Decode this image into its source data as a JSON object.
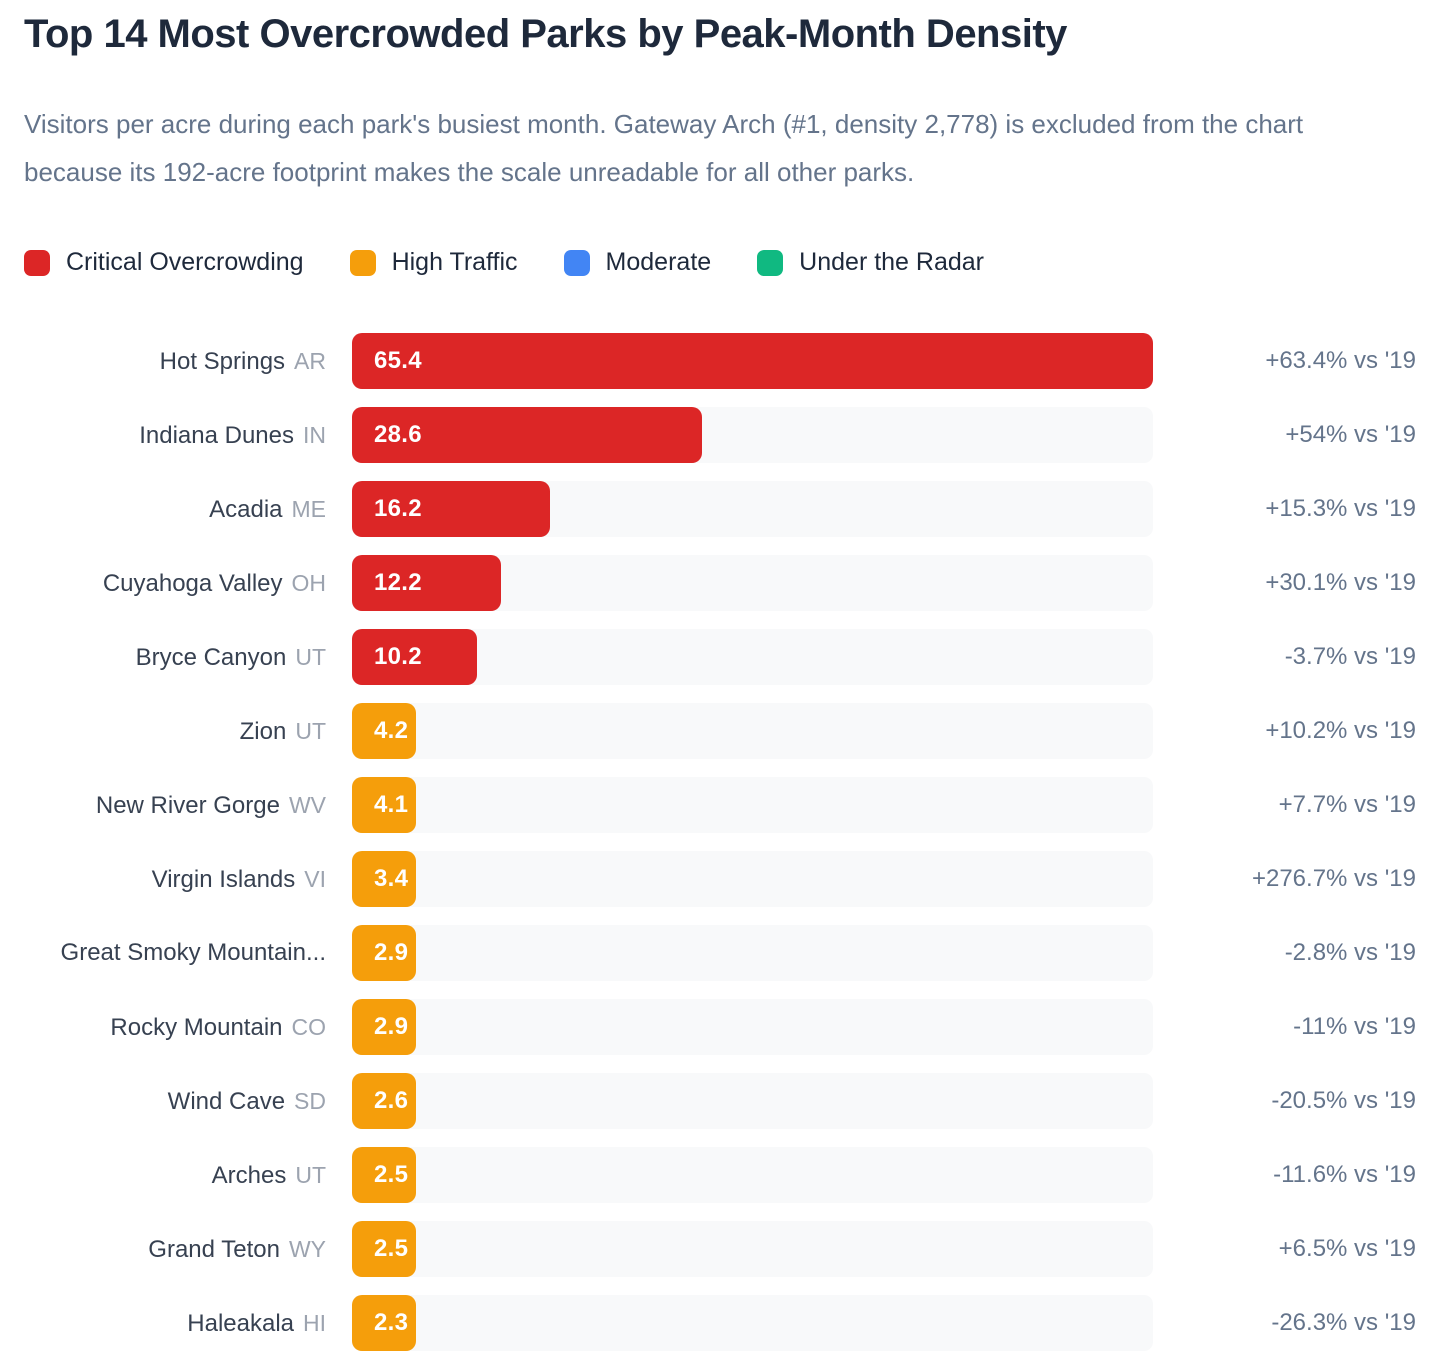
{
  "header": {
    "title": "Top 14 Most Overcrowded Parks by Peak-Month Density",
    "subtitle": "Visitors per acre during each park's busiest month. Gateway Arch (#1, density 2,778) is excluded from the chart because its 192-acre footprint makes the scale unreadable for all other parks."
  },
  "legend": [
    {
      "key": "critical",
      "label": "Critical Overcrowding",
      "color": "#dc2626"
    },
    {
      "key": "high",
      "label": "High Traffic",
      "color": "#f59e0b"
    },
    {
      "key": "moderate",
      "label": "Moderate",
      "color": "#4285f4"
    },
    {
      "key": "under",
      "label": "Under the Radar",
      "color": "#10b981"
    }
  ],
  "colors": {
    "title_text": "#1e293b",
    "muted_text": "#64748b",
    "park_text": "#374151",
    "state_text": "#9ca3af",
    "bar_track": "#f8f9fa",
    "bar_value_text": "#ffffff"
  },
  "chart_data": {
    "type": "bar",
    "orientation": "horizontal",
    "title": "Top 14 Most Overcrowded Parks by Peak-Month Density",
    "value_axis_label": "visitors per acre (peak month)",
    "xlim": [
      0,
      65.4
    ],
    "grid": false,
    "legend_position": "top",
    "bars": [
      {
        "park": "Hot Springs",
        "state": "AR",
        "value": 65.4,
        "value_label": "65.4",
        "category": "critical",
        "delta": "+63.4% vs '19"
      },
      {
        "park": "Indiana Dunes",
        "state": "IN",
        "value": 28.6,
        "value_label": "28.6",
        "category": "critical",
        "delta": "+54% vs '19"
      },
      {
        "park": "Acadia",
        "state": "ME",
        "value": 16.2,
        "value_label": "16.2",
        "category": "critical",
        "delta": "+15.3% vs '19"
      },
      {
        "park": "Cuyahoga Valley",
        "state": "OH",
        "value": 12.2,
        "value_label": "12.2",
        "category": "critical",
        "delta": "+30.1% vs '19"
      },
      {
        "park": "Bryce Canyon",
        "state": "UT",
        "value": 10.2,
        "value_label": "10.2",
        "category": "critical",
        "delta": "-3.7% vs '19"
      },
      {
        "park": "Zion",
        "state": "UT",
        "value": 4.2,
        "value_label": "4.2",
        "category": "high",
        "delta": "+10.2% vs '19"
      },
      {
        "park": "New River Gorge",
        "state": "WV",
        "value": 4.1,
        "value_label": "4.1",
        "category": "high",
        "delta": "+7.7% vs '19"
      },
      {
        "park": "Virgin Islands",
        "state": "VI",
        "value": 3.4,
        "value_label": "3.4",
        "category": "high",
        "delta": "+276.7% vs '19"
      },
      {
        "park": "Great Smoky Mountain...",
        "state": "",
        "value": 2.9,
        "value_label": "2.9",
        "category": "high",
        "delta": "-2.8% vs '19"
      },
      {
        "park": "Rocky Mountain",
        "state": "CO",
        "value": 2.9,
        "value_label": "2.9",
        "category": "high",
        "delta": "-11% vs '19"
      },
      {
        "park": "Wind Cave",
        "state": "SD",
        "value": 2.6,
        "value_label": "2.6",
        "category": "high",
        "delta": "-20.5% vs '19"
      },
      {
        "park": "Arches",
        "state": "UT",
        "value": 2.5,
        "value_label": "2.5",
        "category": "high",
        "delta": "-11.6% vs '19"
      },
      {
        "park": "Grand Teton",
        "state": "WY",
        "value": 2.5,
        "value_label": "2.5",
        "category": "high",
        "delta": "+6.5% vs '19"
      },
      {
        "park": "Haleakala",
        "state": "HI",
        "value": 2.3,
        "value_label": "2.3",
        "category": "high",
        "delta": "-26.3% vs '19"
      }
    ]
  }
}
